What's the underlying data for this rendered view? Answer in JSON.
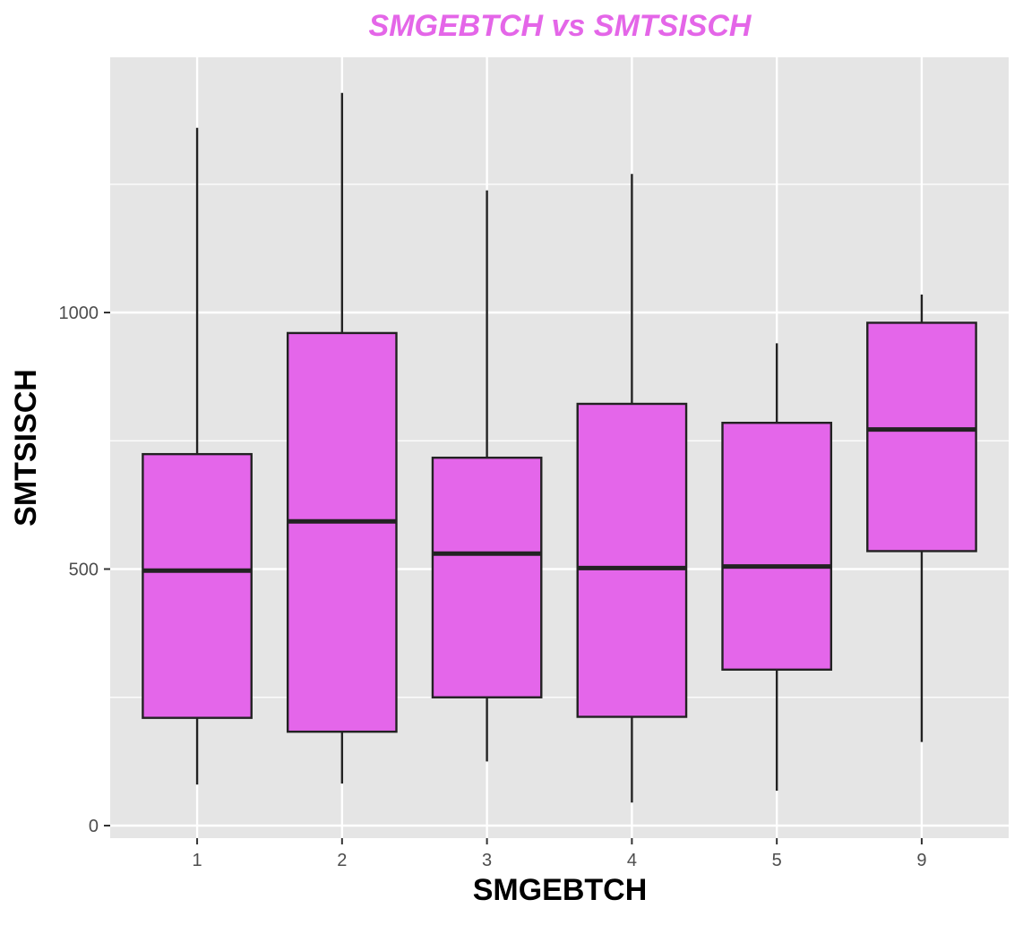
{
  "colors": {
    "title": "#E466E8",
    "box_fill": "#E466EA",
    "box_stroke": "#222222",
    "panel_bg": "#E5E5E5",
    "grid": "#FFFFFF"
  },
  "chart_data": {
    "type": "boxplot",
    "title": "SMGEBTCH vs SMTSISCH",
    "xlabel": "SMGEBTCH",
    "ylabel": "SMTSISCH",
    "ylim": [
      -20,
      1490
    ],
    "y_ticks": [
      0,
      500,
      1000
    ],
    "y_tick_labels": [
      "0",
      "500",
      "1000"
    ],
    "categories": [
      "1",
      "2",
      "3",
      "4",
      "5",
      "9"
    ],
    "boxes": [
      {
        "category": "1",
        "whisker_low": 80,
        "q1": 210,
        "median": 497,
        "q3": 724,
        "whisker_high": 1360
      },
      {
        "category": "2",
        "whisker_low": 82,
        "q1": 183,
        "median": 593,
        "q3": 960,
        "whisker_high": 1428
      },
      {
        "category": "3",
        "whisker_low": 125,
        "q1": 250,
        "median": 530,
        "q3": 717,
        "whisker_high": 1238
      },
      {
        "category": "4",
        "whisker_low": 45,
        "q1": 212,
        "median": 502,
        "q3": 822,
        "whisker_high": 1270
      },
      {
        "category": "5",
        "whisker_low": 68,
        "q1": 304,
        "median": 505,
        "q3": 785,
        "whisker_high": 940
      },
      {
        "category": "9",
        "whisker_low": 163,
        "q1": 535,
        "median": 772,
        "q3": 980,
        "whisker_high": 1035
      }
    ],
    "grid": true,
    "legend": "none"
  }
}
